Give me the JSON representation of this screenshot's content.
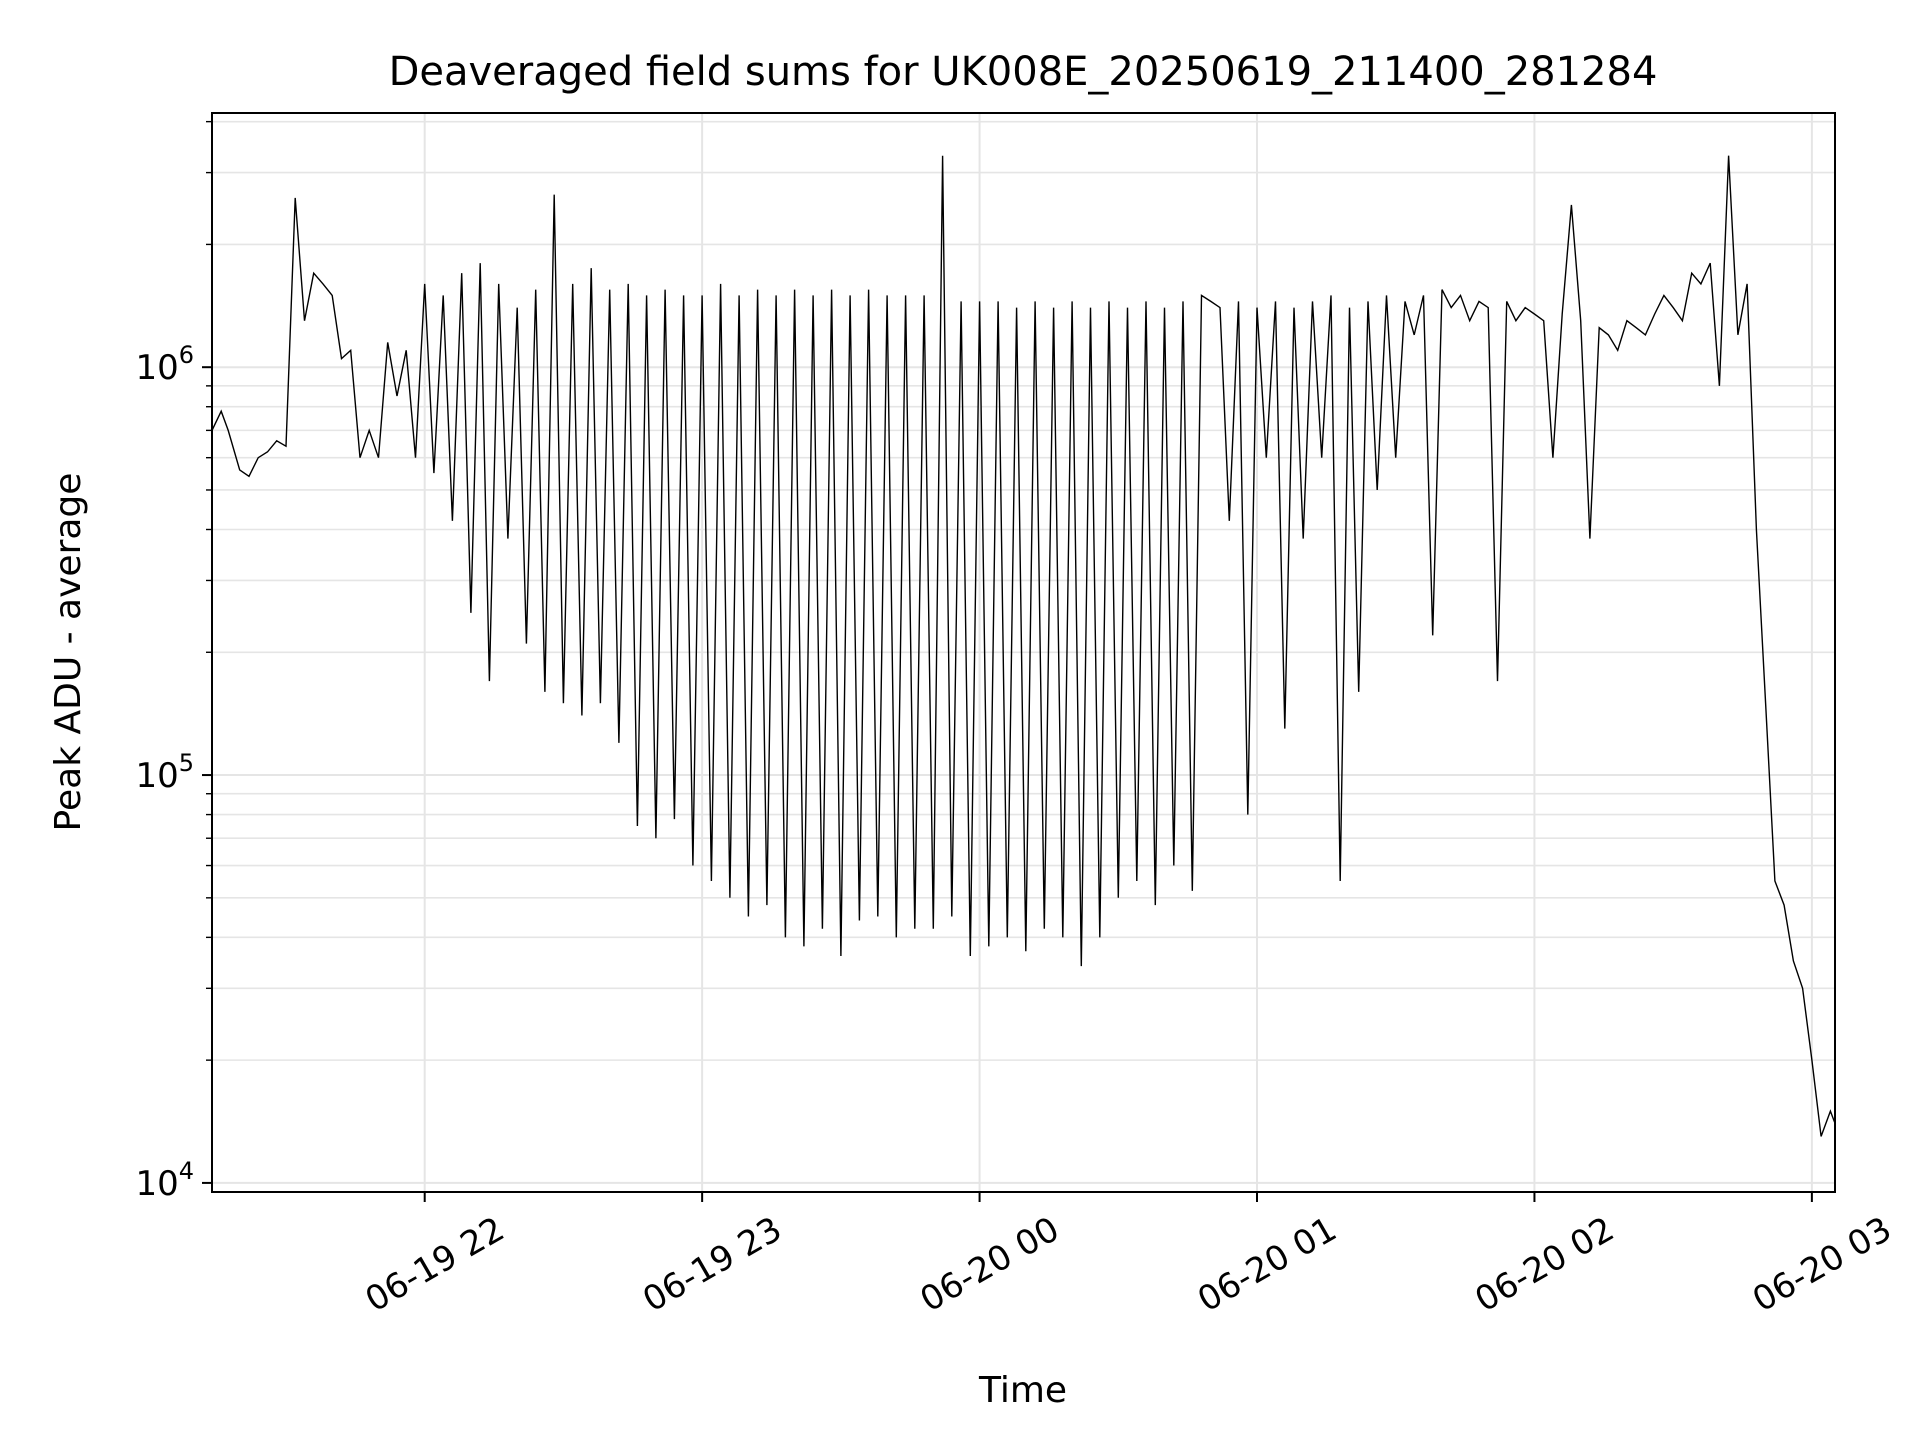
{
  "chart_data": {
    "type": "line",
    "title": "Deaveraged field sums for UK008E_20250619_211400_281284",
    "xlabel": "Time",
    "ylabel": "Peak ADU - average",
    "yscale": "log",
    "ylim": [
      9500,
      4200000
    ],
    "xlim": [
      "2025-06-19 21:14:00",
      "2025-06-20 03:05:00"
    ],
    "grid": true,
    "colors": {
      "line": "#000000",
      "grid": "#e5e5e5",
      "axes": "#000000"
    },
    "x_ticks": [
      {
        "value": "2025-06-19 22:00:00",
        "label": "06-19 22"
      },
      {
        "value": "2025-06-19 23:00:00",
        "label": "06-19 23"
      },
      {
        "value": "2025-06-20 00:00:00",
        "label": "06-20 00"
      },
      {
        "value": "2025-06-20 01:00:00",
        "label": "06-20 01"
      },
      {
        "value": "2025-06-20 02:00:00",
        "label": "06-20 02"
      },
      {
        "value": "2025-06-20 03:00:00",
        "label": "06-20 03"
      }
    ],
    "y_ticks": [
      {
        "value": 10000,
        "base": "10",
        "exp": "4"
      },
      {
        "value": 100000,
        "base": "10",
        "exp": "5"
      },
      {
        "value": 1000000,
        "base": "10",
        "exp": "6"
      }
    ],
    "series": [
      {
        "x": [
          "2025-06-19 21:14:00",
          "2025-06-19 21:16:00",
          "2025-06-19 21:17:30",
          "2025-06-19 21:20:00",
          "2025-06-19 21:22:00",
          "2025-06-19 21:24:00",
          "2025-06-19 21:26:00",
          "2025-06-19 21:28:00",
          "2025-06-19 21:30:00",
          "2025-06-19 21:32:00",
          "2025-06-19 21:34:00",
          "2025-06-19 21:36:00",
          "2025-06-19 21:38:00",
          "2025-06-19 21:40:00",
          "2025-06-19 21:42:00",
          "2025-06-19 21:44:00",
          "2025-06-19 21:46:00",
          "2025-06-19 21:48:00",
          "2025-06-19 21:50:00",
          "2025-06-19 21:52:00",
          "2025-06-19 21:54:00",
          "2025-06-19 21:56:00",
          "2025-06-19 21:58:00",
          "2025-06-19 22:00:00",
          "2025-06-19 22:02:00",
          "2025-06-19 22:04:00",
          "2025-06-19 22:06:00",
          "2025-06-19 22:08:00",
          "2025-06-19 22:10:00",
          "2025-06-19 22:12:00",
          "2025-06-19 22:14:00",
          "2025-06-19 22:16:00",
          "2025-06-19 22:18:00",
          "2025-06-19 22:20:00",
          "2025-06-19 22:22:00",
          "2025-06-19 22:24:00",
          "2025-06-19 22:26:00",
          "2025-06-19 22:28:00",
          "2025-06-19 22:30:00",
          "2025-06-19 22:32:00",
          "2025-06-19 22:34:00",
          "2025-06-19 22:36:00",
          "2025-06-19 22:38:00",
          "2025-06-19 22:40:00",
          "2025-06-19 22:42:00",
          "2025-06-19 22:44:00",
          "2025-06-19 22:46:00",
          "2025-06-19 22:48:00",
          "2025-06-19 22:50:00",
          "2025-06-19 22:52:00",
          "2025-06-19 22:54:00",
          "2025-06-19 22:56:00",
          "2025-06-19 22:58:00",
          "2025-06-19 23:00:00",
          "2025-06-19 23:02:00",
          "2025-06-19 23:04:00",
          "2025-06-19 23:06:00",
          "2025-06-19 23:08:00",
          "2025-06-19 23:10:00",
          "2025-06-19 23:12:00",
          "2025-06-19 23:14:00",
          "2025-06-19 23:16:00",
          "2025-06-19 23:18:00",
          "2025-06-19 23:20:00",
          "2025-06-19 23:22:00",
          "2025-06-19 23:24:00",
          "2025-06-19 23:26:00",
          "2025-06-19 23:28:00",
          "2025-06-19 23:30:00",
          "2025-06-19 23:32:00",
          "2025-06-19 23:34:00",
          "2025-06-19 23:36:00",
          "2025-06-19 23:38:00",
          "2025-06-19 23:40:00",
          "2025-06-19 23:42:00",
          "2025-06-19 23:44:00",
          "2025-06-19 23:46:00",
          "2025-06-19 23:48:00",
          "2025-06-19 23:50:00",
          "2025-06-19 23:52:00",
          "2025-06-19 23:54:00",
          "2025-06-19 23:56:00",
          "2025-06-19 23:58:00",
          "2025-06-20 00:00:00",
          "2025-06-20 00:02:00",
          "2025-06-20 00:04:00",
          "2025-06-20 00:06:00",
          "2025-06-20 00:08:00",
          "2025-06-20 00:10:00",
          "2025-06-20 00:12:00",
          "2025-06-20 00:14:00",
          "2025-06-20 00:16:00",
          "2025-06-20 00:18:00",
          "2025-06-20 00:20:00",
          "2025-06-20 00:22:00",
          "2025-06-20 00:24:00",
          "2025-06-20 00:26:00",
          "2025-06-20 00:28:00",
          "2025-06-20 00:30:00",
          "2025-06-20 00:32:00",
          "2025-06-20 00:34:00",
          "2025-06-20 00:36:00",
          "2025-06-20 00:38:00",
          "2025-06-20 00:40:00",
          "2025-06-20 00:42:00",
          "2025-06-20 00:44:00",
          "2025-06-20 00:46:00",
          "2025-06-20 00:48:00",
          "2025-06-20 00:50:00",
          "2025-06-20 00:52:00",
          "2025-06-20 00:54:00",
          "2025-06-20 00:56:00",
          "2025-06-20 00:58:00",
          "2025-06-20 01:00:00",
          "2025-06-20 01:02:00",
          "2025-06-20 01:04:00",
          "2025-06-20 01:06:00",
          "2025-06-20 01:08:00",
          "2025-06-20 01:10:00",
          "2025-06-20 01:12:00",
          "2025-06-20 01:14:00",
          "2025-06-20 01:16:00",
          "2025-06-20 01:18:00",
          "2025-06-20 01:20:00",
          "2025-06-20 01:22:00",
          "2025-06-20 01:24:00",
          "2025-06-20 01:26:00",
          "2025-06-20 01:28:00",
          "2025-06-20 01:30:00",
          "2025-06-20 01:32:00",
          "2025-06-20 01:34:00",
          "2025-06-20 01:36:00",
          "2025-06-20 01:38:00",
          "2025-06-20 01:40:00",
          "2025-06-20 01:42:00",
          "2025-06-20 01:44:00",
          "2025-06-20 01:46:00",
          "2025-06-20 01:48:00",
          "2025-06-20 01:50:00",
          "2025-06-20 01:52:00",
          "2025-06-20 01:54:00",
          "2025-06-20 01:56:00",
          "2025-06-20 01:58:00",
          "2025-06-20 02:00:00",
          "2025-06-20 02:02:00",
          "2025-06-20 02:04:00",
          "2025-06-20 02:06:00",
          "2025-06-20 02:08:00",
          "2025-06-20 02:10:00",
          "2025-06-20 02:12:00",
          "2025-06-20 02:14:00",
          "2025-06-20 02:16:00",
          "2025-06-20 02:18:00",
          "2025-06-20 02:20:00",
          "2025-06-20 02:22:00",
          "2025-06-20 02:24:00",
          "2025-06-20 02:26:00",
          "2025-06-20 02:28:00",
          "2025-06-20 02:30:00",
          "2025-06-20 02:32:00",
          "2025-06-20 02:34:00",
          "2025-06-20 02:36:00",
          "2025-06-20 02:38:00",
          "2025-06-20 02:40:00",
          "2025-06-20 02:42:00",
          "2025-06-20 02:44:00",
          "2025-06-20 02:46:00",
          "2025-06-20 02:48:00",
          "2025-06-20 02:50:00",
          "2025-06-20 02:52:00",
          "2025-06-20 02:54:00",
          "2025-06-20 02:56:00",
          "2025-06-20 02:58:00",
          "2025-06-20 03:00:00",
          "2025-06-20 03:02:00",
          "2025-06-20 03:04:00",
          "2025-06-20 03:05:00"
        ],
        "y": [
          700000,
          780000,
          700000,
          560000,
          540000,
          600000,
          620000,
          660000,
          640000,
          2600000,
          1300000,
          1700000,
          1600000,
          1500000,
          1050000,
          1100000,
          600000,
          700000,
          600000,
          1150000,
          850000,
          1100000,
          600000,
          1600000,
          550000,
          1500000,
          420000,
          1700000,
          250000,
          1800000,
          170000,
          1600000,
          380000,
          1400000,
          210000,
          1550000,
          160000,
          2650000,
          150000,
          1600000,
          140000,
          1750000,
          150000,
          1550000,
          120000,
          1600000,
          75000,
          1500000,
          70000,
          1550000,
          78000,
          1500000,
          60000,
          1500000,
          55000,
          1600000,
          50000,
          1500000,
          45000,
          1550000,
          48000,
          1500000,
          40000,
          1550000,
          38000,
          1500000,
          42000,
          1550000,
          36000,
          1500000,
          44000,
          1550000,
          45000,
          1500000,
          40000,
          1500000,
          42000,
          1500000,
          42000,
          3300000,
          45000,
          1450000,
          36000,
          1450000,
          38000,
          1450000,
          40000,
          1400000,
          37000,
          1450000,
          42000,
          1400000,
          40000,
          1450000,
          34000,
          1400000,
          40000,
          1450000,
          50000,
          1400000,
          55000,
          1450000,
          48000,
          1400000,
          60000,
          1450000,
          52000,
          1500000,
          1450000,
          1400000,
          420000,
          1450000,
          80000,
          1400000,
          600000,
          1450000,
          130000,
          1400000,
          380000,
          1450000,
          600000,
          1500000,
          55000,
          1400000,
          160000,
          1450000,
          500000,
          1500000,
          600000,
          1450000,
          1200000,
          1500000,
          220000,
          1550000,
          1400000,
          1500000,
          1300000,
          1450000,
          1400000,
          170000,
          1450000,
          1300000,
          1400000,
          1350000,
          1300000,
          600000,
          1350000,
          2500000,
          1300000,
          380000,
          1250000,
          1200000,
          1100000,
          1300000,
          1250000,
          1200000,
          1350000,
          1500000,
          1400000,
          1300000,
          1700000,
          1600000,
          1800000,
          900000,
          3300000,
          1200000,
          1600000,
          400000,
          150000,
          55000,
          48000,
          35000,
          30000,
          20000,
          13000,
          15000,
          14000
        ]
      }
    ]
  }
}
